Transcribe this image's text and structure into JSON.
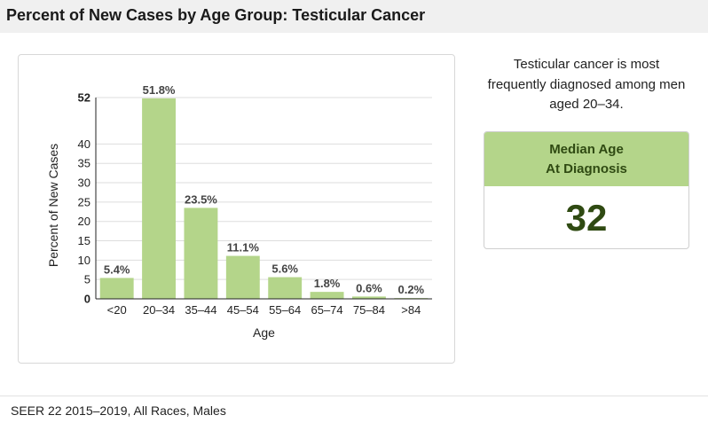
{
  "header": {
    "title": "Percent of New Cases by Age Group: Testicular Cancer"
  },
  "summary": {
    "text_lines": [
      "Testicular cancer is most",
      "frequently diagnosed among men",
      "aged 20–34."
    ]
  },
  "median": {
    "heading_line1": "Median Age",
    "heading_line2": "At Diagnosis",
    "value": "32"
  },
  "footer": {
    "source": "SEER 22 2015–2019, All Races, Males"
  },
  "colors": {
    "bar": "#b4d58a",
    "axis": "#222222",
    "grid": "#dddddd",
    "median_text": "#2f4a12"
  },
  "chart_data": {
    "type": "bar",
    "title": "",
    "xlabel": "Age",
    "ylabel": "Percent of New Cases",
    "categories": [
      "<20",
      "20–34",
      "35–44",
      "45–54",
      "55–64",
      "65–74",
      "75–84",
      ">84"
    ],
    "values": [
      5.4,
      51.8,
      23.5,
      11.1,
      5.6,
      1.8,
      0.6,
      0.2
    ],
    "data_labels": [
      "5.4%",
      "51.8%",
      "23.5%",
      "11.1%",
      "5.6%",
      "1.8%",
      "0.6%",
      "0.2%"
    ],
    "yticks": [
      0,
      5,
      10,
      15,
      20,
      25,
      30,
      35,
      40,
      52
    ],
    "ylim": [
      0,
      52
    ],
    "grid": true,
    "legend": "none"
  }
}
